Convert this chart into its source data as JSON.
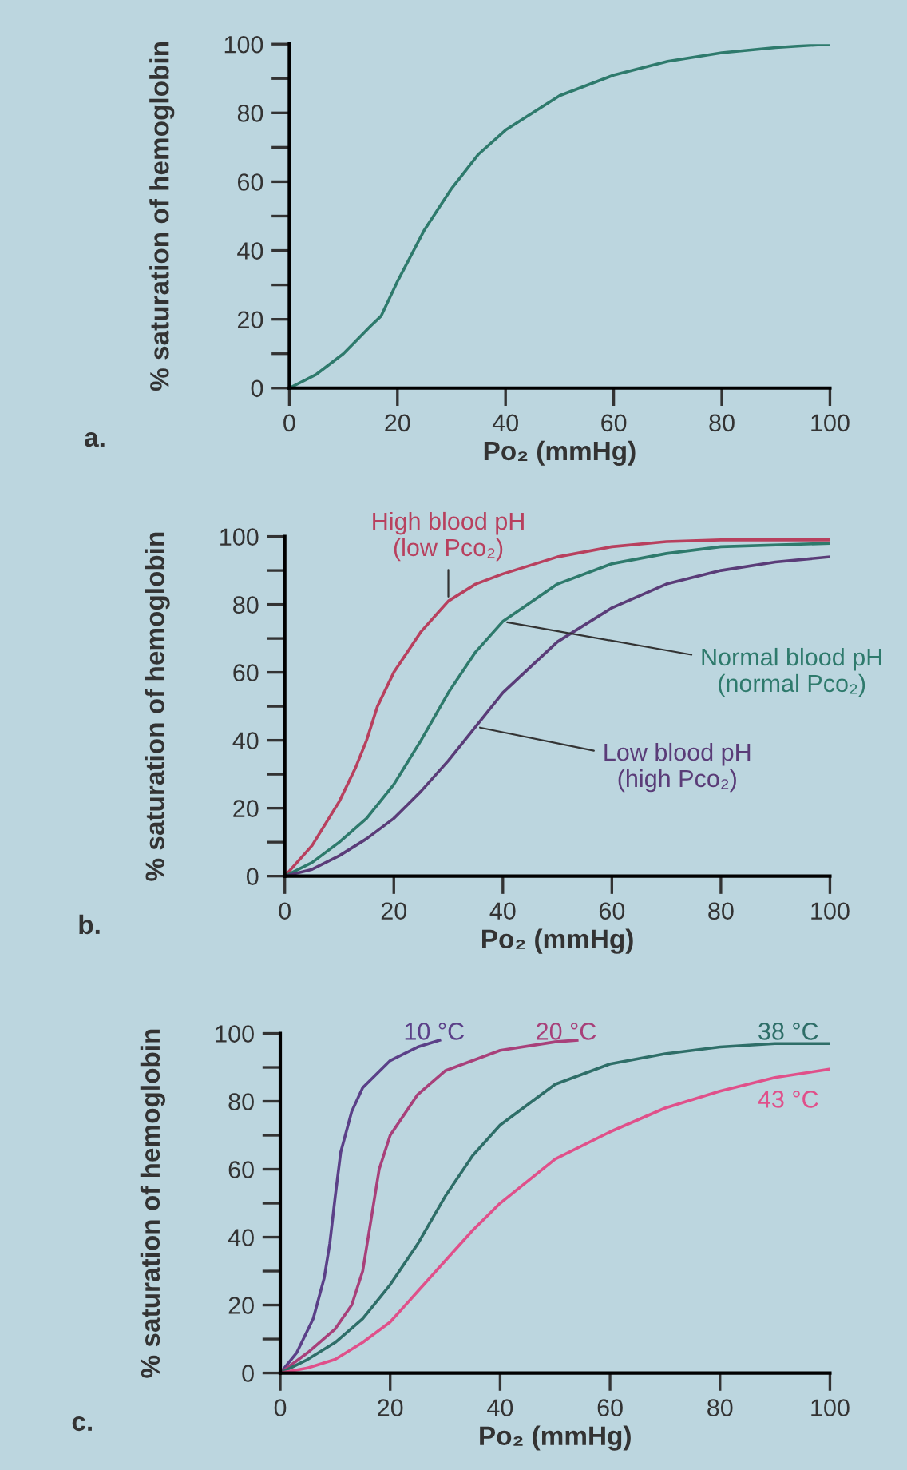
{
  "chart_data": [
    {
      "type": "line",
      "xlabel": "Po₂ (mmHg)",
      "ylabel": "% saturation of hemoglobin",
      "annotations": [
        "a."
      ],
      "xlim": [
        0,
        100
      ],
      "ylim": [
        0,
        100
      ],
      "xticks": [
        0,
        20,
        40,
        60,
        80,
        100
      ],
      "yticks": [
        0,
        {
          "value": 10,
          "label": null
        },
        20,
        {
          "value": 30,
          "label": null
        },
        40,
        {
          "value": 50,
          "label": null
        },
        60,
        {
          "value": 70,
          "label": null
        },
        80,
        {
          "value": 90,
          "label": null
        },
        100
      ],
      "grid": false,
      "legend": false,
      "marker": "none",
      "line_style": "solid",
      "x": [
        0,
        5,
        10,
        15,
        17,
        20,
        25,
        30,
        35,
        40,
        50,
        60,
        70,
        80,
        90,
        100
      ],
      "series": [
        {
          "color": "#2e7a6c",
          "values": [
            0,
            4,
            10,
            18,
            21,
            31,
            46,
            58,
            68,
            75,
            85,
            91,
            95,
            97.5,
            99,
            100
          ]
        }
      ]
    },
    {
      "type": "line",
      "xlabel": "Po₂ (mmHg)",
      "ylabel": "% saturation of hemoglobin",
      "annotations": [
        "b."
      ],
      "xlim": [
        0,
        100
      ],
      "ylim": [
        0,
        100
      ],
      "xticks": [
        0,
        20,
        40,
        60,
        80,
        100
      ],
      "yticks": [
        0,
        {
          "value": 10,
          "label": null
        },
        20,
        {
          "value": 30,
          "label": null
        },
        40,
        {
          "value": 50,
          "label": null
        },
        60,
        {
          "value": 70,
          "label": null
        },
        80,
        {
          "value": 90,
          "label": null
        },
        100
      ],
      "grid": false,
      "legend": false,
      "marker": "none",
      "line_style": "solid",
      "series": [
        {
          "name": "High blood pH\n(low Pco₂)",
          "color": "#b8405e",
          "x": [
            0,
            5,
            10,
            13,
            15,
            17,
            20,
            25,
            30,
            35,
            40,
            50,
            60,
            70,
            80,
            100
          ],
          "values": [
            0,
            9,
            22,
            32,
            40,
            50,
            60,
            72,
            81,
            86,
            89,
            94,
            97,
            98.5,
            99,
            99
          ]
        },
        {
          "name": "Normal blood pH\n(normal Pco₂)",
          "color": "#2e7a6c",
          "x": [
            0,
            5,
            10,
            15,
            20,
            25,
            30,
            35,
            40,
            50,
            60,
            70,
            80,
            100
          ],
          "values": [
            0,
            4,
            10,
            17,
            27,
            40,
            54,
            66,
            75,
            86,
            92,
            95,
            97,
            98
          ]
        },
        {
          "name": "Low blood pH\n(high Pco₂)",
          "color": "#5a3c78",
          "x": [
            0,
            5,
            10,
            15,
            20,
            25,
            30,
            35,
            40,
            50,
            60,
            70,
            80,
            90,
            100
          ],
          "values": [
            0,
            2,
            6,
            11,
            17,
            25,
            34,
            44,
            54,
            69,
            79,
            86,
            90,
            92.5,
            94
          ]
        }
      ]
    },
    {
      "type": "line",
      "xlabel": "Po₂ (mmHg)",
      "ylabel": "% saturation of hemoglobin",
      "annotations": [
        "c."
      ],
      "xlim": [
        0,
        100
      ],
      "ylim": [
        0,
        100
      ],
      "xticks": [
        0,
        20,
        40,
        60,
        80,
        100
      ],
      "yticks": [
        0,
        {
          "value": 10,
          "label": null
        },
        20,
        {
          "value": 30,
          "label": null
        },
        40,
        {
          "value": 50,
          "label": null
        },
        60,
        {
          "value": 70,
          "label": null
        },
        80,
        {
          "value": 90,
          "label": null
        },
        100
      ],
      "grid": false,
      "legend": false,
      "marker": "none",
      "line_style": "solid",
      "series": [
        {
          "name": "10 °C",
          "color": "#5b4088",
          "x": [
            0,
            3,
            6,
            8,
            9,
            10,
            11,
            13,
            15,
            20,
            25,
            29
          ],
          "values": [
            0,
            6,
            16,
            28,
            38,
            52,
            65,
            77,
            84,
            92,
            96,
            98
          ]
        },
        {
          "name": "20 °C",
          "color": "#a8407a",
          "x": [
            0,
            5,
            10,
            13,
            15,
            17,
            18,
            20,
            25,
            30,
            40,
            50,
            54
          ],
          "values": [
            0,
            6,
            13,
            20,
            30,
            50,
            60,
            70,
            82,
            89,
            95,
            97.5,
            98
          ]
        },
        {
          "name": "38 °C",
          "color": "#2e6e68",
          "x": [
            0,
            5,
            10,
            15,
            20,
            25,
            30,
            35,
            40,
            50,
            60,
            70,
            80,
            90,
            100
          ],
          "values": [
            0,
            4,
            9,
            16,
            26,
            38,
            52,
            64,
            73,
            85,
            91,
            94,
            96,
            97,
            97
          ]
        },
        {
          "name": "43 °C",
          "color": "#e0508a",
          "x": [
            0,
            5,
            10,
            15,
            20,
            25,
            30,
            35,
            40,
            50,
            60,
            70,
            80,
            90,
            100
          ],
          "values": [
            0,
            1.5,
            4,
            9,
            15,
            24,
            33,
            42,
            50,
            63,
            71,
            78,
            83,
            87,
            89.5
          ]
        }
      ]
    }
  ]
}
